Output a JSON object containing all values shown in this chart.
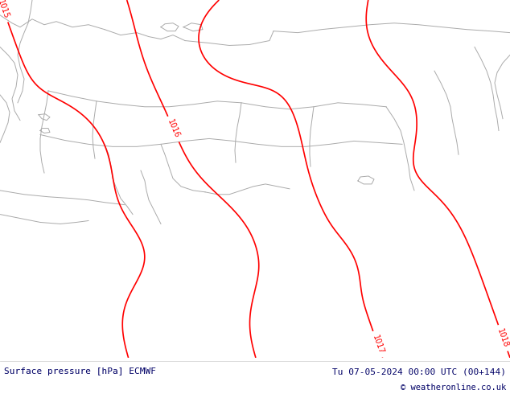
{
  "title_left": "Surface pressure [hPa] ECMWF",
  "title_right": "Tu 07-05-2024 00:00 UTC (00+144)",
  "copyright": "© weatheronline.co.uk",
  "bg_color": "#c8f08a",
  "footer_bg": "#ffffff",
  "footer_text_color": "#000066",
  "contour_color": "#ff0000",
  "border_color": "#aaaaaa",
  "fig_width": 6.34,
  "fig_height": 4.9,
  "label_fontsize": 7,
  "footer_fontsize": 8,
  "dpi": 100
}
